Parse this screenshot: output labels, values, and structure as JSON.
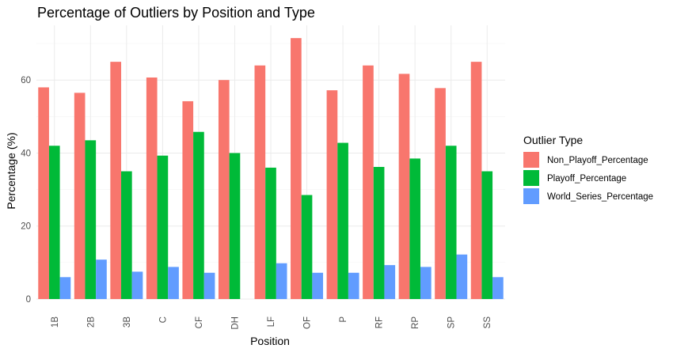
{
  "chart_data": {
    "type": "bar",
    "title": "Percentage of Outliers by Position and Type",
    "xlabel": "Position",
    "ylabel": "Percentage (%)",
    "categories": [
      "1B",
      "2B",
      "3B",
      "C",
      "CF",
      "DH",
      "LF",
      "OF",
      "P",
      "RF",
      "RP",
      "SP",
      "SS"
    ],
    "series": [
      {
        "name": "Non_Playoff_Percentage",
        "color": "#F8766D",
        "values": [
          58.0,
          56.5,
          65.0,
          60.7,
          54.2,
          60.0,
          64.0,
          71.5,
          57.2,
          64.0,
          61.7,
          57.8,
          65.0
        ]
      },
      {
        "name": "Playoff_Percentage",
        "color": "#00BA38",
        "values": [
          42.0,
          43.5,
          35.0,
          39.3,
          45.8,
          40.0,
          36.0,
          28.5,
          42.8,
          36.2,
          38.5,
          42.0,
          35.0
        ]
      },
      {
        "name": "World_Series_Percentage",
        "color": "#619CFF",
        "values": [
          6.0,
          10.8,
          7.5,
          8.8,
          7.2,
          0,
          9.8,
          7.2,
          7.2,
          9.3,
          8.8,
          12.2,
          6.0
        ]
      }
    ],
    "ylim": [
      0,
      75
    ],
    "yticks": [
      0,
      20,
      40,
      60
    ],
    "legend_title": "Outlier Type",
    "legend_position": "right",
    "grid": true
  }
}
